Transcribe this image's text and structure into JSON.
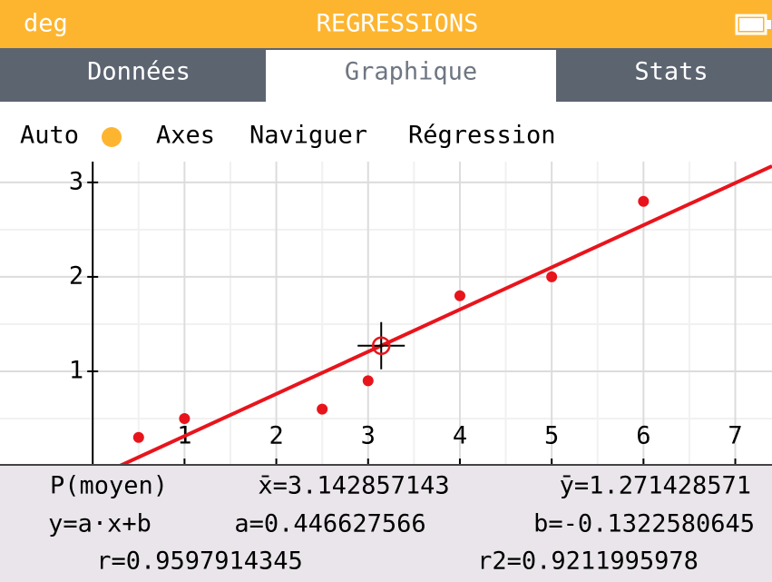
{
  "header": {
    "mode": "deg",
    "title": "REGRESSIONS"
  },
  "tabs": [
    "Données",
    "Graphique",
    "Stats"
  ],
  "toolbar": {
    "auto": "Auto",
    "axes": "Axes",
    "navigate": "Naviguer",
    "regression": "Régression"
  },
  "chart_data": {
    "type": "scatter",
    "x": [
      0.5,
      1,
      2.5,
      3,
      4,
      5,
      6
    ],
    "y": [
      0.3,
      0.5,
      0.6,
      0.9,
      1.8,
      2,
      2.8
    ],
    "color": "#e8141c",
    "regression": {
      "a": 0.446627566,
      "b": -0.1322580645
    },
    "mean_point": {
      "x": 3.142857143,
      "y": 1.271428571
    },
    "xlim": [
      -1.01,
      7.4
    ],
    "ylim": [
      0,
      3.22
    ],
    "xticks": [
      1,
      2,
      3,
      4,
      5,
      6,
      7
    ],
    "yticks": [
      1,
      2,
      3
    ],
    "grid": true,
    "minor_grid": true
  },
  "stats": {
    "rows": [
      [
        "P(moyen)",
        "x̄=3.142857143",
        "ȳ=1.271428571"
      ],
      [
        "y=a·x+b",
        "a=0.446627566",
        "b=-0.1322580645"
      ],
      [
        "r=0.9597914345",
        "r2=0.9211995978"
      ]
    ]
  }
}
